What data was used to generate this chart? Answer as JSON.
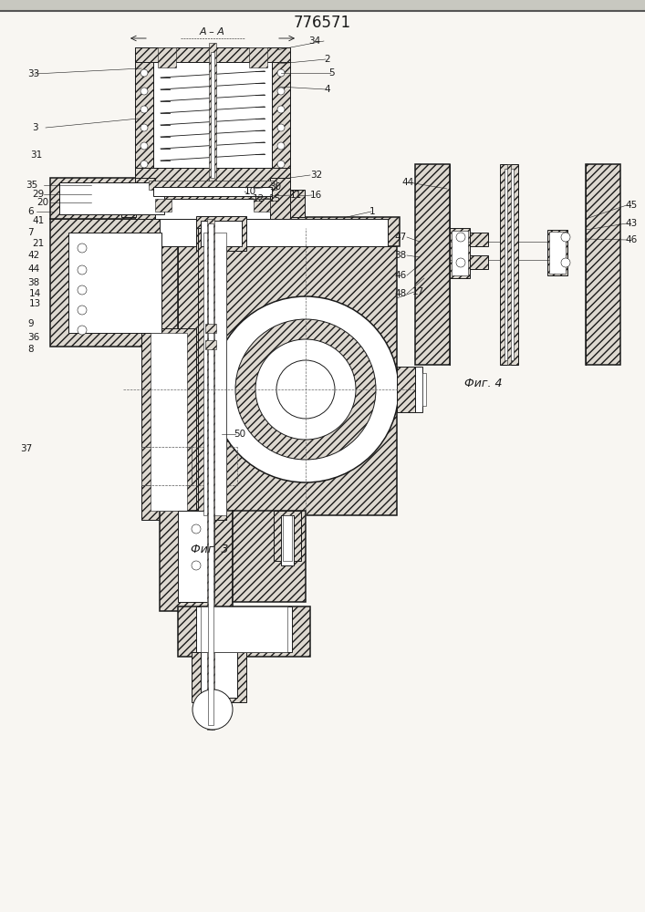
{
  "title": "776571",
  "bg_color": "#ffffff",
  "line_color": "#1a1a1a",
  "fig_caption1": "Фиг. 3",
  "fig_caption2": "Фиг. 4",
  "section_label": "А – А"
}
